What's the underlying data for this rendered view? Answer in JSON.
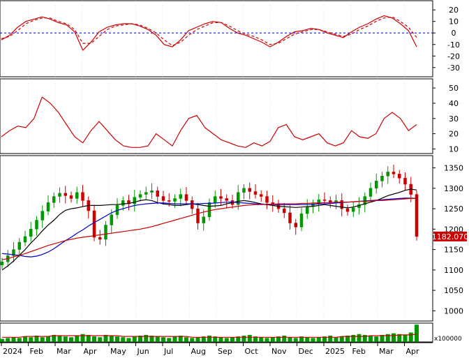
{
  "chart_data": [
    {
      "type": "line",
      "panel": "oscillator",
      "ylim": [
        -38,
        28
      ],
      "y_ticks": [
        20,
        10,
        0,
        -10,
        -20,
        -30
      ],
      "zero_line": true,
      "months": [
        "2024",
        "Feb",
        "Mar",
        "Apr",
        "May",
        "Jun",
        "Jul",
        "Aug",
        "Sep",
        "Oct",
        "Nov",
        "Dec",
        "2025",
        "Feb",
        "Mar",
        "Apr"
      ],
      "x": [
        0,
        6,
        12,
        18,
        24,
        30,
        36,
        42,
        48,
        54,
        60,
        66,
        72,
        78,
        84,
        90,
        96,
        102,
        108,
        114,
        120,
        126,
        132,
        138,
        144,
        150,
        156,
        162,
        168,
        174,
        180,
        186,
        192,
        198,
        204,
        210,
        216,
        222,
        228,
        234,
        240,
        246,
        252,
        258,
        264,
        270,
        276,
        282,
        288,
        294,
        300,
        306
      ],
      "series": [
        {
          "color": "#cc0000",
          "style": "solid",
          "values": [
            -6,
            -2,
            5,
            10,
            12,
            14,
            12,
            9,
            7,
            1,
            -15,
            -8,
            1,
            5,
            7,
            8,
            8,
            6,
            3,
            -2,
            -10,
            -12,
            -6,
            2,
            5,
            8,
            10,
            9,
            4,
            0,
            -2,
            -5,
            -8,
            -12,
            -8,
            -3,
            1,
            2,
            4,
            3,
            0,
            -2,
            -4,
            1,
            5,
            8,
            12,
            15,
            13,
            8,
            2,
            -12
          ],
          "name": ""
        },
        {
          "color": "#cc0000",
          "style": "dashed",
          "values": [
            -5,
            -3,
            2,
            8,
            11,
            13,
            13,
            10,
            8,
            3,
            -9,
            -9,
            -3,
            3,
            6,
            7,
            8,
            7,
            4,
            0,
            -6,
            -11,
            -8,
            -2,
            3,
            6,
            9,
            9,
            6,
            2,
            -1,
            -3,
            -6,
            -10,
            -9,
            -5,
            -1,
            1,
            3,
            3,
            1,
            -1,
            -3,
            -1,
            3,
            6,
            10,
            13,
            14,
            10,
            5,
            -4
          ],
          "name": ""
        }
      ]
    },
    {
      "type": "line",
      "panel": "rsi",
      "ylim": [
        7,
        56
      ],
      "y_ticks": [
        50,
        40,
        30,
        20,
        10
      ],
      "x": [
        0,
        6,
        12,
        18,
        24,
        30,
        36,
        42,
        48,
        54,
        60,
        66,
        72,
        78,
        84,
        90,
        96,
        102,
        108,
        114,
        120,
        126,
        132,
        138,
        144,
        150,
        156,
        162,
        168,
        174,
        180,
        186,
        192,
        198,
        204,
        210,
        216,
        222,
        228,
        234,
        240,
        246,
        252,
        258,
        264,
        270,
        276,
        282,
        288,
        294,
        300,
        306
      ],
      "series": [
        {
          "color": "#cc0000",
          "style": "solid",
          "values": [
            18,
            22,
            25,
            24,
            30,
            44,
            40,
            34,
            26,
            18,
            14,
            22,
            28,
            22,
            16,
            12,
            11,
            11,
            12,
            20,
            16,
            12,
            22,
            30,
            32,
            24,
            20,
            16,
            14,
            12,
            11,
            14,
            12,
            15,
            24,
            26,
            18,
            16,
            18,
            20,
            14,
            12,
            14,
            22,
            18,
            17,
            20,
            30,
            34,
            30,
            22,
            26
          ],
          "name": ""
        }
      ]
    },
    {
      "type": "candlestick",
      "panel": "price",
      "ylim": [
        975,
        1380
      ],
      "y_ticks": [
        1350,
        1300,
        1250,
        1200,
        1150,
        1100,
        1050,
        1000
      ],
      "last_price": "1182.070",
      "candles_close": [
        1120,
        1135,
        1150,
        1168,
        1182,
        1200,
        1222,
        1244,
        1265,
        1280,
        1288,
        1282,
        1275,
        1290,
        1270,
        1245,
        1180,
        1175,
        1210,
        1235,
        1258,
        1270,
        1262,
        1278,
        1285,
        1290,
        1294,
        1280,
        1270,
        1268,
        1275,
        1285,
        1270,
        1250,
        1215,
        1230,
        1265,
        1280,
        1275,
        1270,
        1260,
        1290,
        1300,
        1292,
        1285,
        1280,
        1265,
        1262,
        1250,
        1240,
        1215,
        1205,
        1238,
        1255,
        1262,
        1272,
        1270,
        1265,
        1270,
        1250,
        1243,
        1252,
        1260,
        1280,
        1300,
        1318,
        1330,
        1340,
        1335,
        1325,
        1310,
        1285,
        1182
      ],
      "series": [
        {
          "name": "",
          "color": "#000000",
          "values": [
            1100,
            1110,
            1122,
            1136,
            1150,
            1166,
            1180,
            1196,
            1210,
            1222,
            1236,
            1246,
            1250,
            1252,
            1255,
            1258,
            1258,
            1258,
            1259,
            1260,
            1260,
            1262,
            1263,
            1266,
            1270,
            1272,
            1270,
            1265,
            1262,
            1260,
            1258,
            1258,
            1260,
            1262,
            1260,
            1258,
            1256,
            1257,
            1258,
            1262,
            1265,
            1268,
            1270,
            1268,
            1265,
            1262,
            1260,
            1258,
            1256,
            1255,
            1254,
            1253,
            1254,
            1255,
            1256,
            1258,
            1260,
            1258,
            1256,
            1254,
            1252,
            1254,
            1258,
            1262,
            1266,
            1270,
            1276,
            1282,
            1286,
            1290,
            1295,
            1298,
            1296
          ]
        },
        {
          "name": "",
          "color": "#0000cc",
          "values": [
            1140,
            1139,
            1137,
            1136,
            1133,
            1132,
            1134,
            1138,
            1144,
            1152,
            1162,
            1172,
            1180,
            1190,
            1198,
            1208,
            1216,
            1224,
            1232,
            1240,
            1246,
            1250,
            1254,
            1258,
            1260,
            1262,
            1263,
            1264,
            1264,
            1263,
            1262,
            1262,
            1262,
            1262,
            1262,
            1263,
            1263,
            1264,
            1265,
            1266,
            1266,
            1265,
            1264,
            1263,
            1262,
            1261,
            1260,
            1260,
            1260,
            1260,
            1260,
            1260,
            1260,
            1260,
            1261,
            1262,
            1262,
            1263,
            1264,
            1265,
            1266,
            1267,
            1268,
            1269,
            1270,
            1271,
            1272,
            1273,
            1274,
            1275,
            1276,
            1276,
            1275
          ]
        },
        {
          "name": "",
          "color": "#cc0000",
          "values": [
            1125,
            1128,
            1132,
            1136,
            1140,
            1145,
            1150,
            1155,
            1160,
            1164,
            1168,
            1172,
            1175,
            1178,
            1180,
            1182,
            1184,
            1186,
            1188,
            1190,
            1192,
            1194,
            1196,
            1198,
            1200,
            1203,
            1206,
            1210,
            1214,
            1218,
            1222,
            1226,
            1230,
            1234,
            1238,
            1242,
            1245,
            1248,
            1250,
            1252,
            1254,
            1256,
            1258,
            1259,
            1260,
            1260,
            1261,
            1261,
            1262,
            1262,
            1262,
            1262,
            1263,
            1263,
            1264,
            1264,
            1265,
            1265,
            1266,
            1266,
            1266,
            1267,
            1268,
            1268,
            1269,
            1270,
            1270,
            1271,
            1272,
            1273,
            1274,
            1275,
            1275
          ]
        }
      ]
    },
    {
      "type": "bar",
      "panel": "volume",
      "scale_label": "x100000",
      "values": [
        4,
        5,
        6,
        5,
        7,
        6,
        8,
        6,
        7,
        9,
        8,
        7,
        6,
        8,
        10,
        9,
        7,
        6,
        9,
        8,
        7,
        6,
        5,
        7,
        8,
        9,
        8,
        7,
        6,
        5,
        7,
        8,
        6,
        5,
        6,
        7,
        8,
        7,
        6,
        5,
        6,
        7,
        8,
        9,
        7,
        6,
        5,
        6,
        7,
        8,
        6,
        5,
        7,
        6,
        5,
        6,
        7,
        8,
        6,
        7,
        8,
        9,
        10,
        9,
        8,
        7,
        9,
        10,
        11,
        10,
        9,
        12,
        22
      ],
      "ma_values": [
        6,
        6,
        6,
        6,
        7,
        7,
        7,
        7,
        7,
        8,
        8,
        8,
        8,
        8,
        8,
        8,
        8,
        8,
        8,
        8,
        8,
        7,
        7,
        7,
        7,
        7,
        7,
        7,
        7,
        7,
        7,
        7,
        7,
        6,
        6,
        6,
        6,
        6,
        6,
        6,
        6,
        6,
        6,
        6,
        6,
        6,
        6,
        6,
        6,
        6,
        6,
        6,
        6,
        6,
        6,
        6,
        6,
        6,
        6,
        7,
        7,
        7,
        7,
        7,
        8,
        8,
        8,
        8,
        8,
        9,
        9,
        9,
        10
      ],
      "x_ticks": [
        "2024",
        "Feb",
        "Mar",
        "Apr",
        "May",
        "Jun",
        "Jul",
        "Aug",
        "Sep",
        "Oct",
        "Nov",
        "Dec",
        "2025",
        "Feb",
        "Mar",
        "Apr"
      ]
    }
  ]
}
